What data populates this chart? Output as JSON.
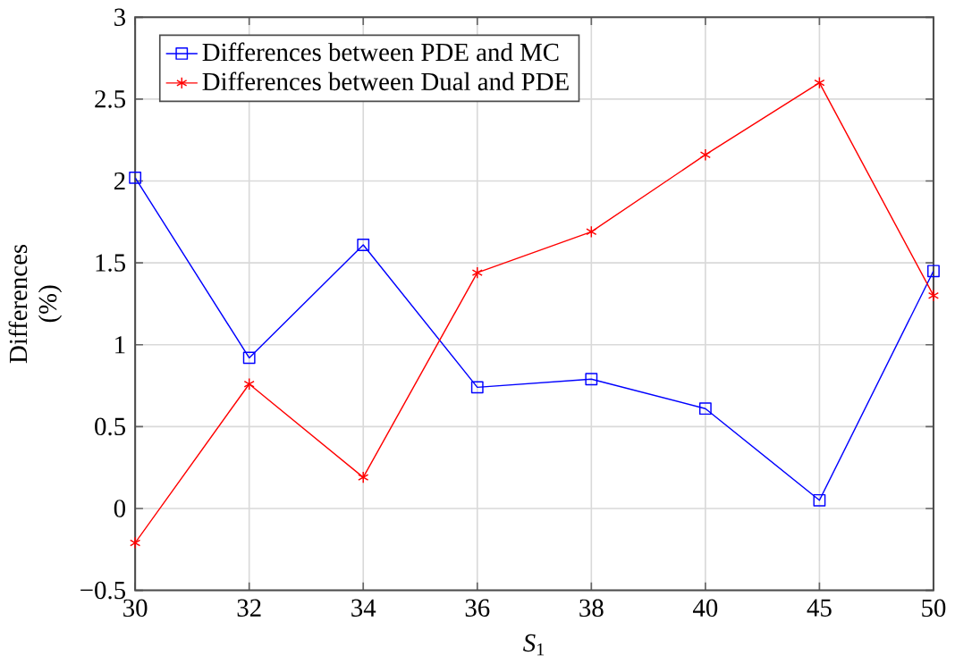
{
  "chart_data": {
    "type": "line",
    "xlabel": "*S*$_{1}$",
    "ylabel": "Differences (%)",
    "categories": [
      "30",
      "32",
      "34",
      "36",
      "38",
      "40",
      "45",
      "50"
    ],
    "series": [
      {
        "name": "Differences between PDE and MC",
        "color": "#0000ff",
        "marker": "square",
        "values": [
          2.02,
          0.92,
          1.61,
          0.74,
          0.79,
          0.61,
          0.05,
          1.45
        ]
      },
      {
        "name": "Differences between Dual and PDE",
        "color": "#ff0000",
        "marker": "cross",
        "values": [
          -0.21,
          0.76,
          0.19,
          1.44,
          1.69,
          2.16,
          2.6,
          1.3
        ]
      }
    ],
    "ylim": [
      -0.5,
      3
    ],
    "yticks": [
      {
        "value": -0.5,
        "label": "−0.5"
      },
      0,
      0.5,
      1,
      1.5,
      2,
      2.5,
      3
    ],
    "grid": true,
    "legend": "top left",
    "line_style": "solid"
  }
}
